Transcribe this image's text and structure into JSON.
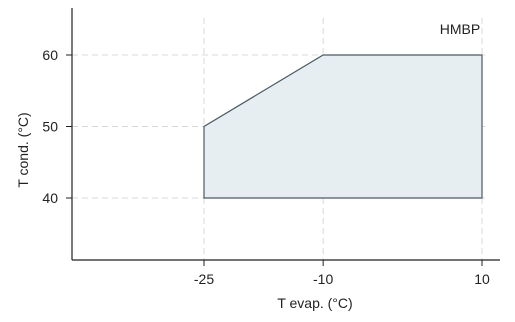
{
  "chart_data": {
    "type": "area",
    "series": [
      {
        "name": "HMBP",
        "x": [
          -25,
          -25,
          -10,
          10,
          10
        ],
        "y": [
          40,
          50,
          60,
          60,
          40
        ]
      }
    ],
    "annotation": "HMBP",
    "xlabel": "T evap. (°C)",
    "ylabel": "T cond. (°C)",
    "xticks": [
      -25,
      -10,
      10
    ],
    "yticks": [
      40,
      50,
      60
    ],
    "xtick_labels": [
      "-25",
      "-10",
      "10"
    ],
    "ytick_labels": [
      "40",
      "50",
      "60"
    ],
    "grid": "dashed",
    "colors": {
      "fill": "#e7eef2",
      "stroke": "#4b5a63",
      "axis": "#222222",
      "grid": "#d8d8d8"
    }
  }
}
